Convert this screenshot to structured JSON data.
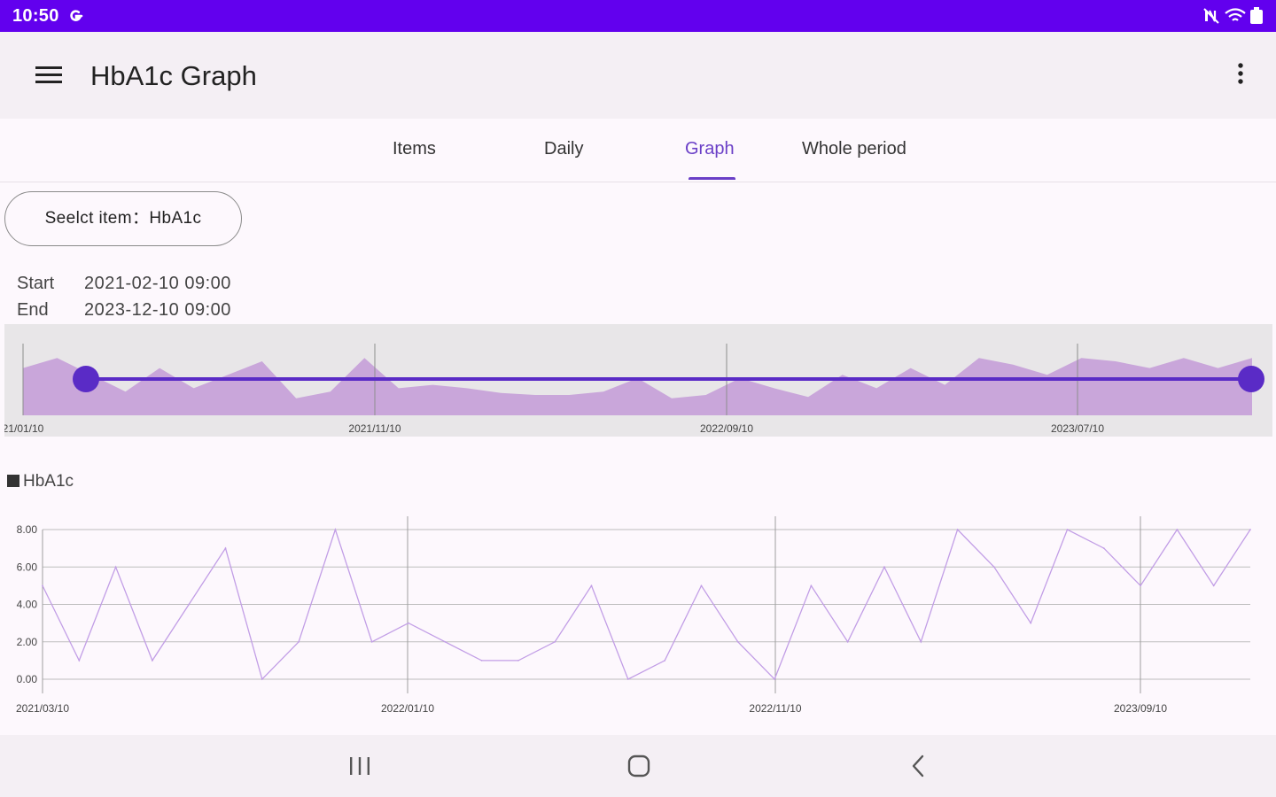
{
  "status_bar": {
    "time": "10:50",
    "carrier_icon": "google-g-icon",
    "icons": [
      "mute-icon",
      "wifi-icon",
      "battery-icon"
    ]
  },
  "app_bar": {
    "title": "HbA1c Graph",
    "menu_icon": "hamburger-menu-icon",
    "more_icon": "overflow-menu-icon"
  },
  "tabs": [
    {
      "label": "Items",
      "active": false
    },
    {
      "label": "Daily",
      "active": false
    },
    {
      "label": "Graph",
      "active": true
    },
    {
      "label": "Whole period",
      "active": false
    }
  ],
  "select_item": {
    "label": "Seelct item：HbA1c"
  },
  "range": {
    "start_label": "Start",
    "start_value": "2021-02-10 09:00",
    "end_label": "End",
    "end_value": "2023-12-10 09:00"
  },
  "nav_bar": {
    "icons": [
      "recent-apps-icon",
      "home-icon",
      "back-icon"
    ]
  },
  "colors": {
    "status_bar": "#6200ee",
    "accent": "#6a3fc7",
    "overview_fill": "#c9a6da",
    "overview_background": "#e8e6e8",
    "slider": "#5a2bc6",
    "line": "#c29ee6"
  },
  "chart_data": [
    {
      "type": "area",
      "role": "overview range selector",
      "x_tick_labels": [
        "21/01/10",
        "2021/11/10",
        "2022/09/10",
        "2023/07/10"
      ],
      "values": [
        6.5,
        8,
        5.5,
        3,
        6.5,
        3.5,
        5.5,
        7.5,
        2,
        3,
        8,
        3.5,
        4,
        3.5,
        2.8,
        2.5,
        2.5,
        3,
        5,
        2,
        2.5,
        5,
        3.5,
        2.2,
        5.5,
        3.5,
        6.5,
        4,
        8,
        7,
        5.5,
        8,
        7.5,
        6.5,
        8,
        6.5,
        8
      ],
      "selection": {
        "start": "2021-02-10",
        "end": "2023-12-10"
      }
    },
    {
      "type": "line",
      "legend": "HbA1c",
      "y_tick_labels": [
        "0.00",
        "2.00",
        "4.00",
        "6.00",
        "8.00"
      ],
      "ylim": [
        0,
        8
      ],
      "x_tick_labels": [
        "2021/03/10",
        "2022/01/10",
        "2022/11/10",
        "2023/09/10"
      ],
      "series": [
        {
          "name": "HbA1c",
          "values": [
            5,
            1,
            6,
            1,
            4,
            7,
            0,
            2,
            8,
            2,
            3,
            2,
            1,
            1,
            2,
            5,
            0,
            1,
            5,
            2,
            0,
            5,
            2,
            6,
            2,
            8,
            6,
            3,
            8,
            7,
            5,
            8,
            5,
            8
          ]
        }
      ]
    }
  ]
}
